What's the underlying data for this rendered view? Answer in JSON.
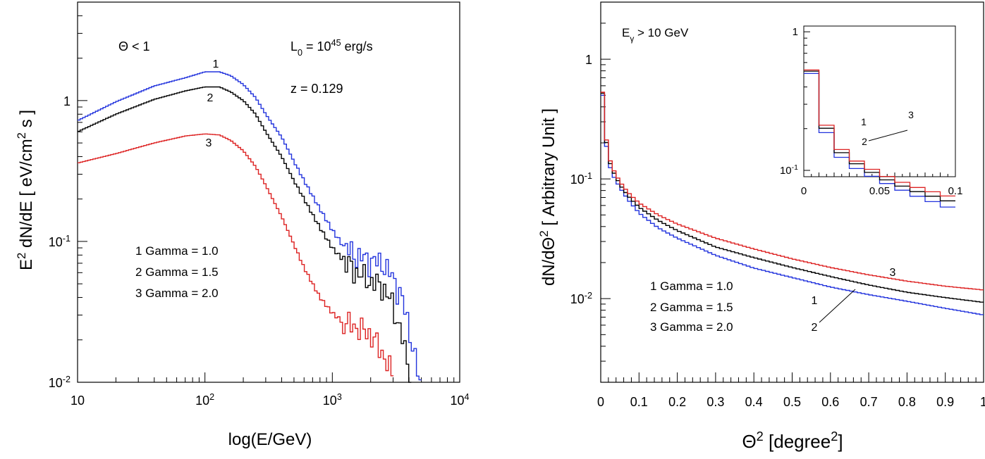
{
  "chart_data": [
    {
      "type": "line",
      "title": "",
      "xlabel": "log(E/GeV)",
      "ylabel": "E^2 dN/dE [ eV/cm^2 s ]",
      "xscale": "log",
      "yscale": "log",
      "xlim": [
        10,
        10000
      ],
      "ylim": [
        0.01,
        5
      ],
      "x_ticks": [
        "10",
        "10^2",
        "10^3",
        "10^4"
      ],
      "y_ticks": [
        "10^-2",
        "10^-1",
        "1"
      ],
      "annotations": {
        "cut": "Θ < 1",
        "luminosity": "L_0 = 10^45 erg/s",
        "redshift": "z = 0.129"
      },
      "legend": [
        "1  Gamma = 1.0",
        "2  Gamma = 1.5",
        "3  Gamma = 2.0"
      ],
      "series": [
        {
          "label": "1",
          "color": "#2233dd",
          "x": [
            10,
            20,
            40,
            70,
            100,
            130,
            160,
            200,
            250,
            300,
            400,
            500,
            600,
            700,
            800,
            1000,
            1200,
            1500,
            2000,
            2500,
            3000,
            3500,
            4000,
            4500,
            5000
          ],
          "y": [
            0.72,
            0.98,
            1.27,
            1.45,
            1.6,
            1.6,
            1.5,
            1.3,
            1.05,
            0.8,
            0.55,
            0.37,
            0.27,
            0.21,
            0.17,
            0.12,
            0.095,
            0.08,
            0.073,
            0.07,
            0.055,
            0.04,
            0.025,
            0.014,
            0.009
          ]
        },
        {
          "label": "2",
          "color": "#000000",
          "x": [
            10,
            20,
            40,
            70,
            100,
            130,
            160,
            200,
            250,
            300,
            400,
            500,
            600,
            700,
            800,
            1000,
            1200,
            1500,
            2000,
            2500,
            3000,
            3500,
            4000
          ],
          "y": [
            0.6,
            0.8,
            1.02,
            1.17,
            1.25,
            1.25,
            1.15,
            1.0,
            0.8,
            0.6,
            0.4,
            0.27,
            0.2,
            0.155,
            0.125,
            0.09,
            0.075,
            0.062,
            0.052,
            0.048,
            0.035,
            0.022,
            0.012
          ]
        },
        {
          "label": "3",
          "color": "#dd2222",
          "x": [
            10,
            20,
            40,
            70,
            100,
            130,
            160,
            200,
            250,
            300,
            400,
            500,
            600,
            700,
            800,
            1000,
            1200,
            1500,
            2000,
            2500,
            3000
          ],
          "y": [
            0.36,
            0.42,
            0.5,
            0.56,
            0.58,
            0.57,
            0.52,
            0.44,
            0.34,
            0.25,
            0.15,
            0.095,
            0.065,
            0.05,
            0.04,
            0.031,
            0.027,
            0.025,
            0.022,
            0.016,
            0.011
          ]
        }
      ]
    },
    {
      "type": "line",
      "title": "",
      "xlabel": "Θ^2 [degree^2]",
      "ylabel": "dN/dΘ^2 [ Arbitrary Unit ]",
      "xscale": "linear",
      "yscale": "log",
      "xlim": [
        0,
        1
      ],
      "ylim": [
        0.002,
        3
      ],
      "x_ticks": [
        "0",
        "0.1",
        "0.2",
        "0.3",
        "0.4",
        "0.5",
        "0.6",
        "0.7",
        "0.8",
        "0.9",
        "1"
      ],
      "y_ticks": [
        "10^-2",
        "10^-1",
        "1"
      ],
      "annotations": {
        "energy_cut": "E_γ > 10 GeV"
      },
      "legend": [
        "1  Gamma = 1.0",
        "2  Gamma = 1.5",
        "3  Gamma = 2.0"
      ],
      "series": [
        {
          "label": "1",
          "color": "#2233dd",
          "x": [
            0,
            0.005,
            0.01,
            0.02,
            0.03,
            0.05,
            0.07,
            0.1,
            0.15,
            0.2,
            0.3,
            0.4,
            0.5,
            0.6,
            0.7,
            0.8,
            0.9,
            1.0
          ],
          "y": [
            1.0,
            0.5,
            0.25,
            0.14,
            0.11,
            0.085,
            0.068,
            0.052,
            0.039,
            0.032,
            0.023,
            0.018,
            0.015,
            0.0125,
            0.0108,
            0.0095,
            0.0083,
            0.0073
          ]
        },
        {
          "label": "2",
          "color": "#000000",
          "x": [
            0,
            0.005,
            0.01,
            0.02,
            0.03,
            0.05,
            0.07,
            0.1,
            0.15,
            0.2,
            0.3,
            0.4,
            0.5,
            0.6,
            0.7,
            0.8,
            0.9,
            1.0
          ],
          "y": [
            1.0,
            0.52,
            0.27,
            0.15,
            0.12,
            0.09,
            0.073,
            0.058,
            0.045,
            0.037,
            0.027,
            0.022,
            0.0182,
            0.0153,
            0.013,
            0.0113,
            0.0102,
            0.0093
          ]
        },
        {
          "label": "3",
          "color": "#dd2222",
          "x": [
            0,
            0.005,
            0.01,
            0.02,
            0.03,
            0.05,
            0.07,
            0.1,
            0.15,
            0.2,
            0.3,
            0.4,
            0.5,
            0.6,
            0.7,
            0.8,
            0.9,
            1.0
          ],
          "y": [
            1.0,
            0.53,
            0.28,
            0.16,
            0.125,
            0.095,
            0.078,
            0.063,
            0.05,
            0.042,
            0.032,
            0.026,
            0.0215,
            0.0182,
            0.0158,
            0.014,
            0.0127,
            0.0118
          ]
        }
      ],
      "inset": {
        "xlim": [
          0,
          0.1
        ],
        "ylim": [
          0.09,
          1.1
        ],
        "x_ticks": [
          "0",
          "0.05",
          "0.1"
        ],
        "y_ticks": [
          "10^-1",
          "1"
        ]
      }
    }
  ]
}
